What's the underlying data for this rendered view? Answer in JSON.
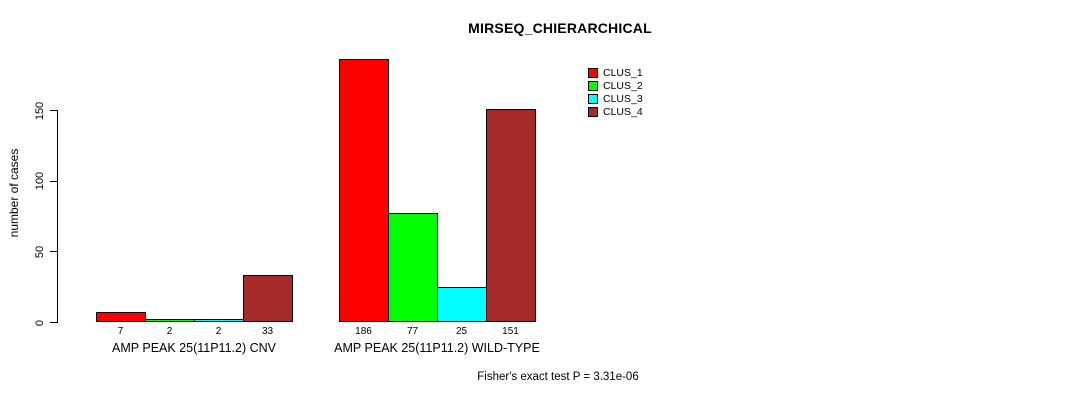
{
  "chart_data": {
    "type": "bar",
    "title": "MIRSEQ_CHIERARCHICAL",
    "ylabel": "number of cases",
    "xlabel": "",
    "ylim": [
      0,
      150
    ],
    "yticks": [
      0,
      50,
      100,
      150
    ],
    "grid": false,
    "legend_position": "top-right",
    "categories": [
      "AMP PEAK 25(11P11.2) CNV",
      "AMP PEAK 25(11P11.2) WILD-TYPE"
    ],
    "series": [
      {
        "name": "CLUS_1",
        "color": "#ff0000",
        "values": [
          7,
          186
        ]
      },
      {
        "name": "CLUS_2",
        "color": "#00ff00",
        "values": [
          2,
          77
        ]
      },
      {
        "name": "CLUS_3",
        "color": "#00ffff",
        "values": [
          2,
          25
        ]
      },
      {
        "name": "CLUS_4",
        "color": "#a52a2a",
        "values": [
          33,
          151
        ]
      }
    ],
    "bar_value_labels": [
      [
        7,
        2,
        2,
        33
      ],
      [
        186,
        77,
        25,
        151
      ]
    ],
    "annotation": "Fisher's exact test P = 3.31e-06"
  }
}
